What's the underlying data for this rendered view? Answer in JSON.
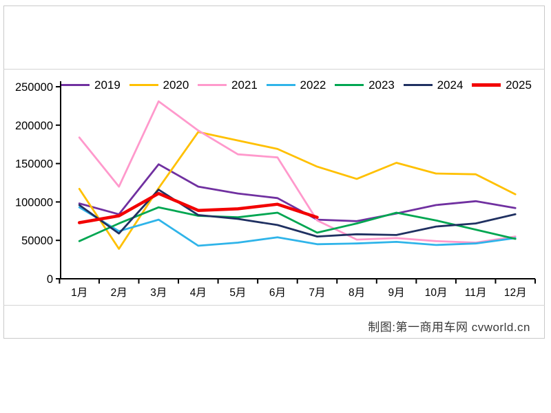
{
  "footer": {
    "credit": "制图:第一商用车网 cvworld.cn"
  },
  "chart_data": {
    "type": "line",
    "title": "",
    "xlabel": "",
    "ylabel": "",
    "categories": [
      "1月",
      "2月",
      "3月",
      "4月",
      "5月",
      "6月",
      "7月",
      "8月",
      "9月",
      "10月",
      "11月",
      "12月"
    ],
    "y_axis": {
      "min": 0,
      "max": 250000,
      "step": 50000,
      "tick_labels": [
        "0",
        "50000",
        "100000",
        "150000",
        "200000",
        "250000"
      ]
    },
    "grid": false,
    "legend_position": "top",
    "series": [
      {
        "name": "2019",
        "color": "#7030a0",
        "width": 2.8,
        "values": [
          98000,
          84000,
          149000,
          120000,
          111000,
          105000,
          77000,
          75000,
          85000,
          96000,
          101000,
          92000
        ]
      },
      {
        "name": "2020",
        "color": "#ffc000",
        "width": 2.8,
        "values": [
          117000,
          39000,
          118000,
          191000,
          180000,
          169000,
          146000,
          130000,
          151000,
          137000,
          136000,
          110000
        ]
      },
      {
        "name": "2021",
        "color": "#ff99cc",
        "width": 2.8,
        "values": [
          184000,
          120000,
          231000,
          193000,
          162000,
          158000,
          76000,
          51000,
          53000,
          49000,
          47000,
          55000
        ]
      },
      {
        "name": "2022",
        "color": "#2fb4e9",
        "width": 2.8,
        "values": [
          93000,
          62000,
          77000,
          43000,
          47000,
          54000,
          45000,
          46000,
          48000,
          44000,
          46000,
          53000
        ]
      },
      {
        "name": "2023",
        "color": "#00a651",
        "width": 2.8,
        "values": [
          49000,
          72000,
          93000,
          82000,
          80000,
          86000,
          60000,
          72000,
          86000,
          76000,
          64000,
          52000
        ]
      },
      {
        "name": "2024",
        "color": "#1f3061",
        "width": 2.8,
        "values": [
          96000,
          59000,
          116000,
          83000,
          78000,
          70000,
          55000,
          58000,
          57000,
          68000,
          72000,
          84000
        ]
      },
      {
        "name": "2025",
        "color": "#f20000",
        "width": 4.5,
        "values": [
          73000,
          82000,
          111000,
          89000,
          91000,
          97000,
          80000,
          null,
          null,
          null,
          null,
          null
        ]
      }
    ]
  }
}
